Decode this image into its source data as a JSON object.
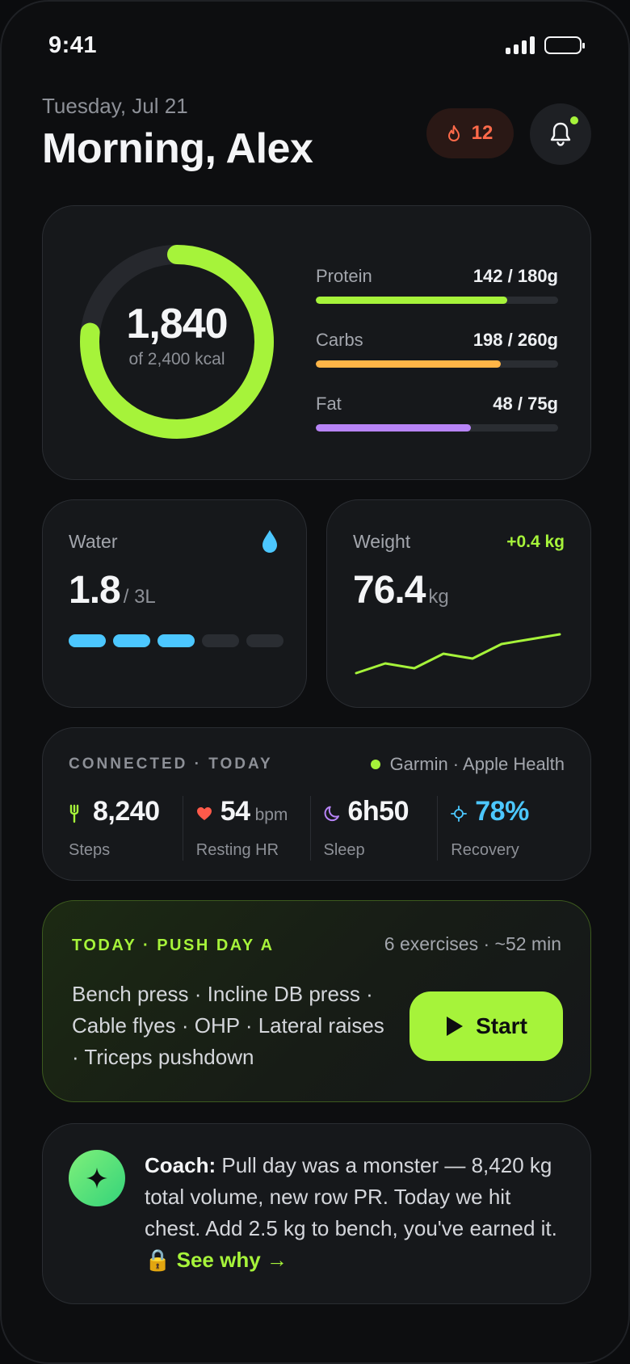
{
  "status": {
    "time": "9:41"
  },
  "header": {
    "date": "Tuesday, Jul 21",
    "greeting": "Morning, Alex",
    "streak": "12"
  },
  "calories": {
    "value": "1,840",
    "goal_text": "of 2,400 kcal",
    "fraction": 0.7667,
    "macros": [
      {
        "label": "Protein",
        "value": "142 / 180g",
        "fraction": 0.789,
        "color": "#a6f33a"
      },
      {
        "label": "Carbs",
        "value": "198 / 260g",
        "fraction": 0.762,
        "color": "#ffb547"
      },
      {
        "label": "Fat",
        "value": "48 / 75g",
        "fraction": 0.64,
        "color": "#b784f7"
      }
    ]
  },
  "water": {
    "label": "Water",
    "value": "1.8",
    "unit": "/ 3L",
    "filled_segments": 3,
    "total_segments": 5,
    "color": "#4cc7ff"
  },
  "weight": {
    "label": "Weight",
    "value": "76.4",
    "unit": "kg",
    "delta": "+0.4 kg",
    "trend": [
      76.0,
      76.1,
      76.05,
      76.2,
      76.15,
      76.3,
      76.35,
      76.4
    ]
  },
  "connected": {
    "title": "CONNECTED · TODAY",
    "sources": "Garmin · Apple Health",
    "stats": [
      {
        "value": "8,240",
        "unit": "",
        "label": "Steps",
        "icon": "shoe-icon"
      },
      {
        "value": "54",
        "unit": "bpm",
        "label": "Resting HR",
        "icon": "heart-icon"
      },
      {
        "value": "6h50",
        "unit": "",
        "label": "Sleep",
        "icon": "moon-icon"
      },
      {
        "value": "78%",
        "unit": "",
        "label": "Recovery",
        "icon": "crosshair-icon"
      }
    ]
  },
  "workout": {
    "title": "TODAY · PUSH DAY A",
    "meta": "6 exercises · ~52 min",
    "exercises": "Bench press · Incline DB press · Cable flyes · OHP · Lateral raises · Triceps pushdown",
    "start_label": "Start"
  },
  "coach": {
    "prefix": "Coach:",
    "message": "Pull day was a monster — 8,420 kg total volume, new row PR. Today we hit chest. Add 2.5 kg to bench, you've earned it.",
    "lock": "🔒",
    "link": "See why →"
  },
  "colors": {
    "accent": "#a6f33a",
    "streak": "#ff6a4a",
    "water": "#4cc7ff",
    "heart": "#ff5a4a",
    "sleep": "#b784f7"
  }
}
